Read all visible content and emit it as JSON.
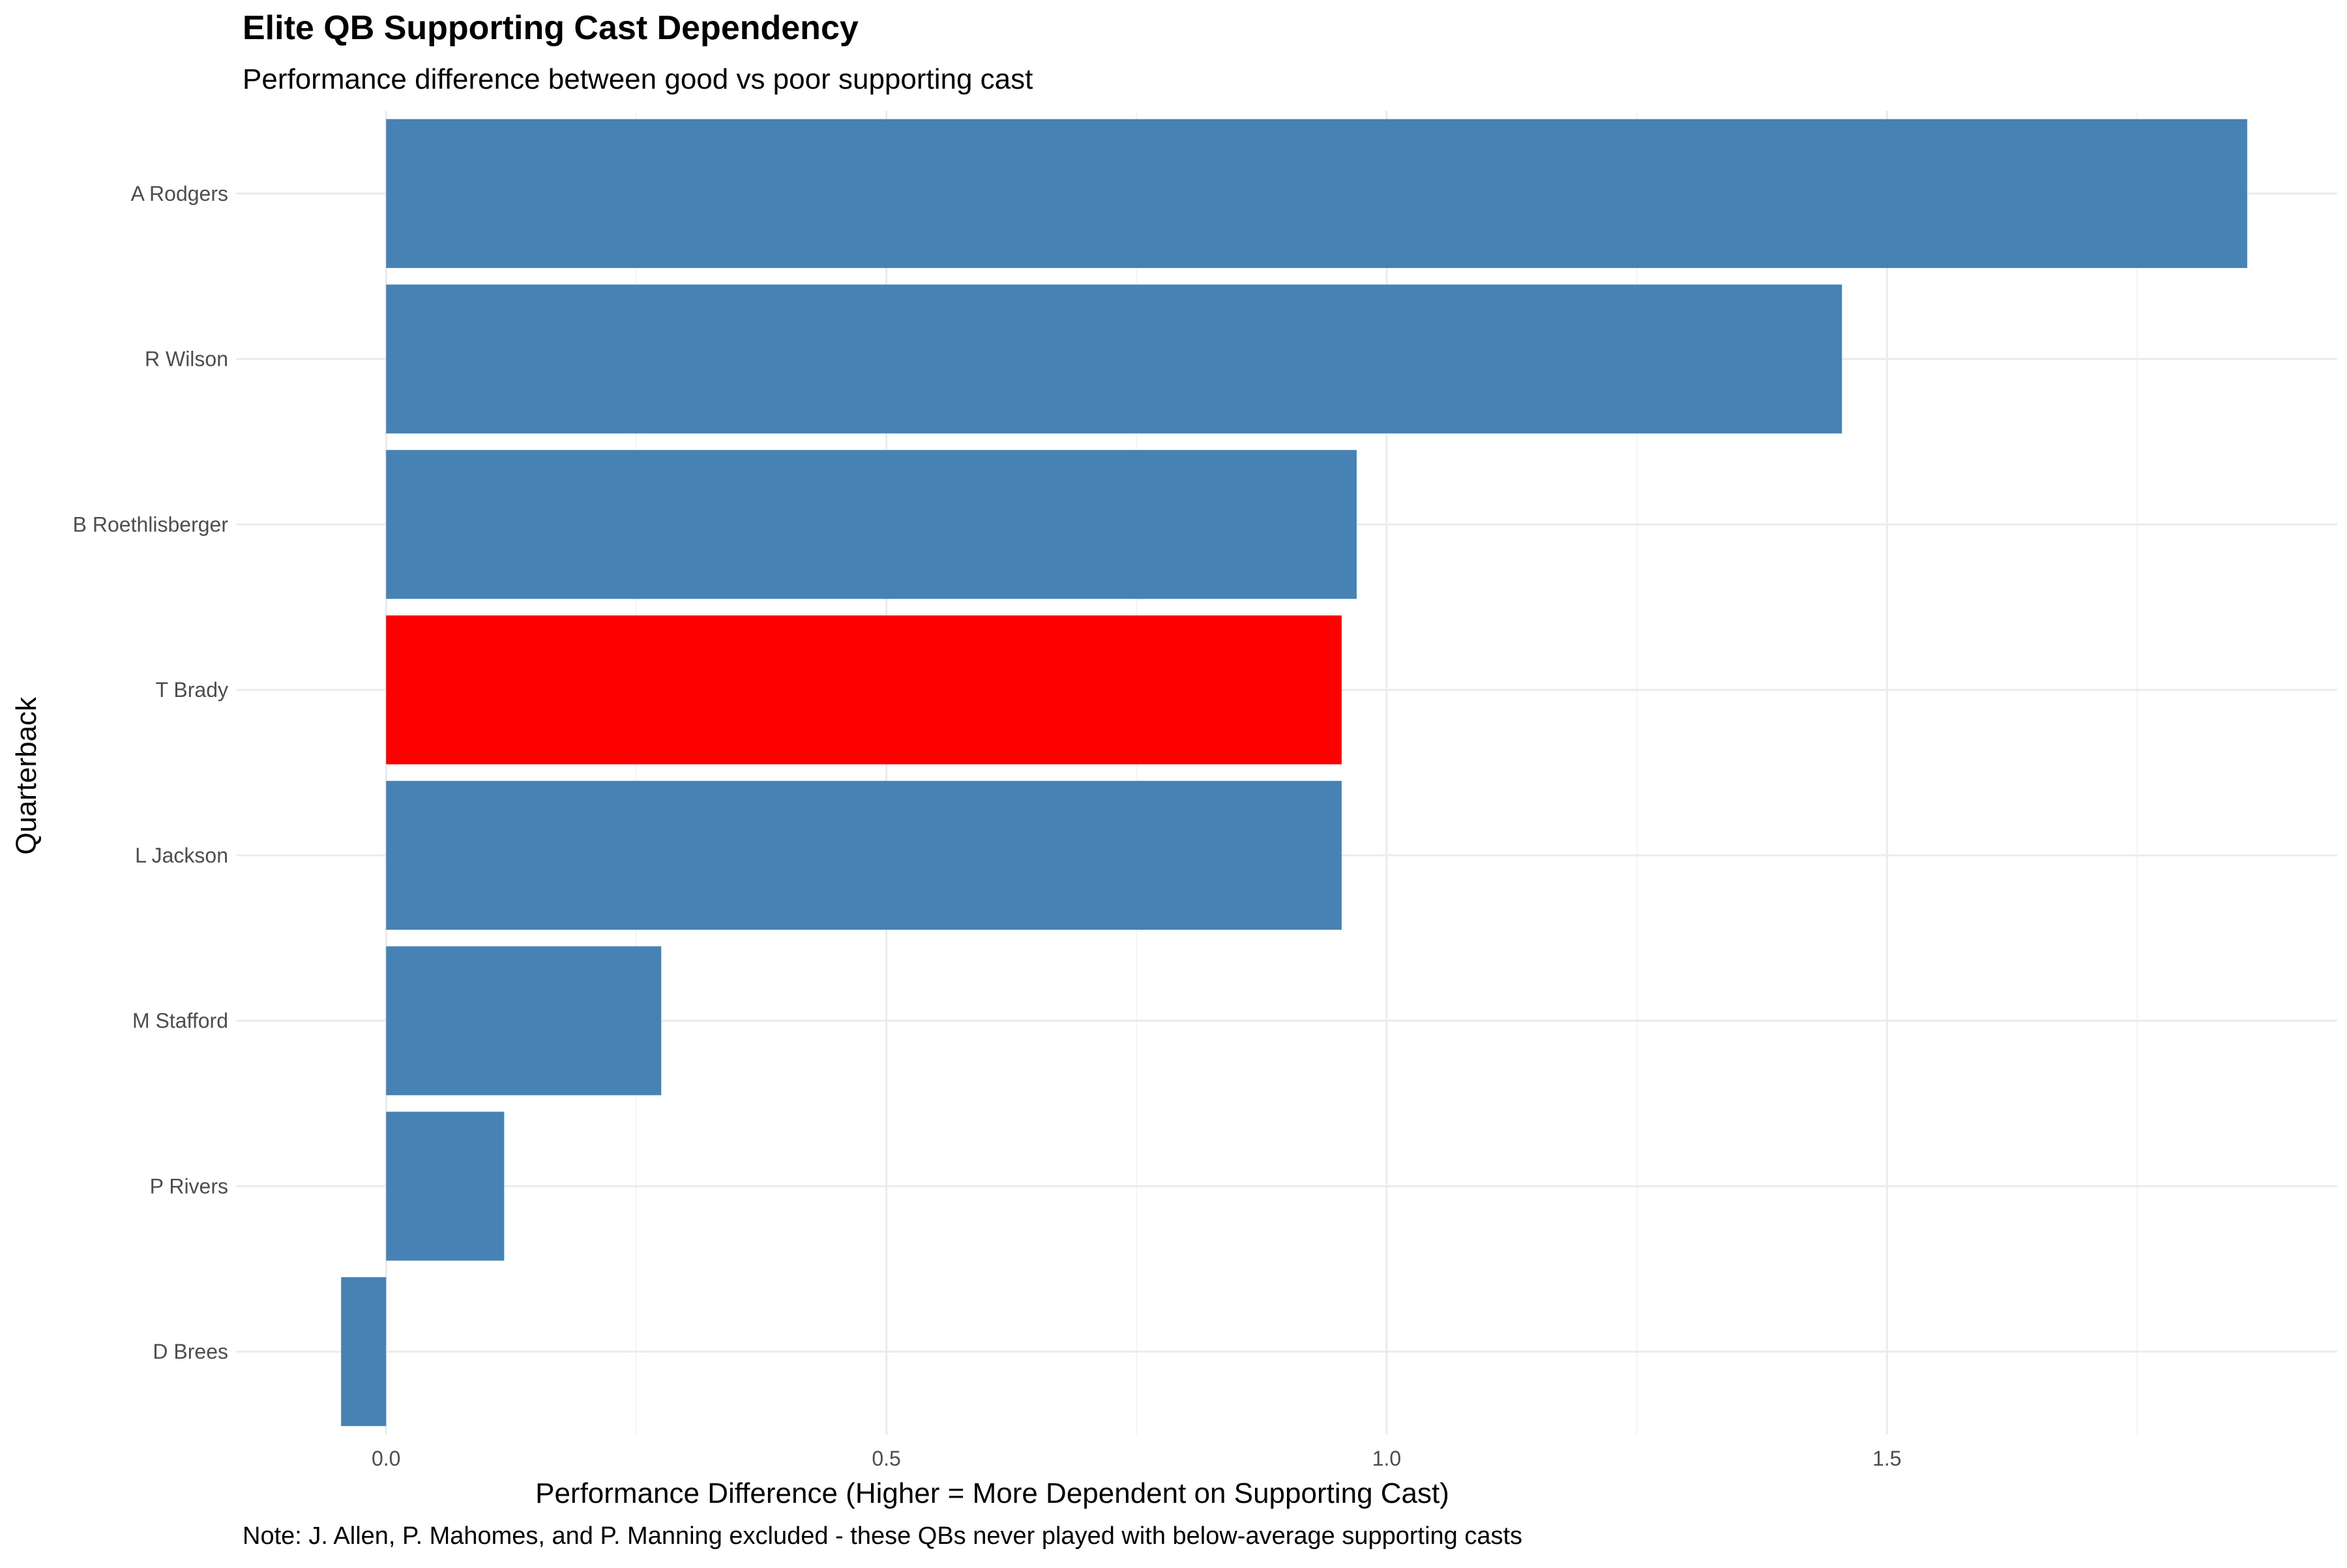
{
  "chart_data": {
    "type": "bar",
    "orientation": "horizontal",
    "title": "Elite QB Supporting Cast Dependency",
    "subtitle": "Performance difference between good vs poor supporting cast",
    "xlabel": "Performance Difference (Higher = More Dependent on Supporting Cast)",
    "ylabel": "Quarterback",
    "caption": "Note: J. Allen, P. Mahomes, and P. Manning excluded - these QBs never played with below-average supporting casts",
    "categories": [
      "A Rodgers",
      "R Wilson",
      "B Roethlisberger",
      "T Brady",
      "L Jackson",
      "M Stafford",
      "P Rivers",
      "D Brees"
    ],
    "values": [
      1.86,
      1.455,
      0.97,
      0.955,
      0.955,
      0.275,
      0.118,
      -0.045
    ],
    "colors": [
      "#4682B4",
      "#4682B4",
      "#4682B4",
      "#FF0000",
      "#4682B4",
      "#4682B4",
      "#4682B4",
      "#4682B4"
    ],
    "highlight": "T Brady",
    "xlim": [
      -0.15,
      1.95
    ],
    "xticks": [
      0.0,
      0.5,
      1.0,
      1.5
    ],
    "xtick_labels": [
      "0.0",
      "0.5",
      "1.0",
      "1.5"
    ],
    "grid": true,
    "legend": "none"
  }
}
